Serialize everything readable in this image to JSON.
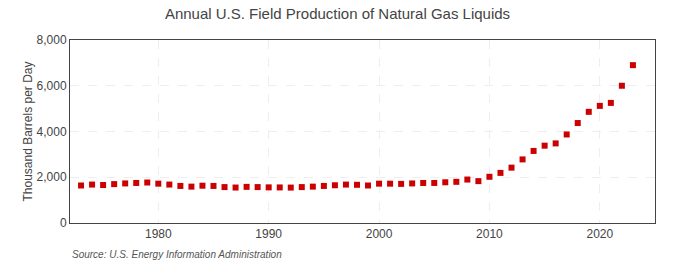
{
  "chart_data": {
    "type": "scatter",
    "title": "Annual U.S. Field Production of Natural Gas Liquids",
    "ylabel": "Thousand Barrels per Day",
    "annotations": [
      "Source: U.S. Energy Information Administration"
    ],
    "color": "#cc0000",
    "marker": "square",
    "grid": true,
    "xlim": [
      1972,
      2025
    ],
    "xticks": [
      1980,
      1990,
      2000,
      2010,
      2020
    ],
    "ylim": [
      0,
      8000
    ],
    "yticks": [
      0,
      {
        "value": 2000,
        "label": "2,000"
      },
      {
        "value": 4000,
        "label": "4,000"
      },
      {
        "value": 6000,
        "label": "6,000"
      },
      {
        "value": 8000,
        "label": "8,000"
      }
    ],
    "x": [
      1973,
      1974,
      1975,
      1976,
      1977,
      1978,
      1979,
      1980,
      1981,
      1982,
      1983,
      1984,
      1985,
      1986,
      1987,
      1988,
      1989,
      1990,
      1991,
      1992,
      1993,
      1994,
      1995,
      1996,
      1997,
      1998,
      1999,
      2000,
      2001,
      2002,
      2003,
      2004,
      2005,
      2006,
      2007,
      2008,
      2009,
      2010,
      2011,
      2012,
      2013,
      2014,
      2015,
      2016,
      2017,
      2018,
      2019,
      2020,
      2021,
      2022,
      2023
    ],
    "values": [
      1640,
      1680,
      1660,
      1700,
      1730,
      1750,
      1770,
      1720,
      1680,
      1620,
      1590,
      1630,
      1620,
      1570,
      1550,
      1580,
      1570,
      1558,
      1555,
      1548,
      1570,
      1590,
      1620,
      1650,
      1680,
      1670,
      1640,
      1720,
      1720,
      1710,
      1730,
      1750,
      1750,
      1780,
      1800,
      1900,
      1830,
      2020,
      2190,
      2420,
      2780,
      3150,
      3380,
      3480,
      3870,
      4370,
      4860,
      5120,
      5250,
      6000,
      6900
    ]
  }
}
